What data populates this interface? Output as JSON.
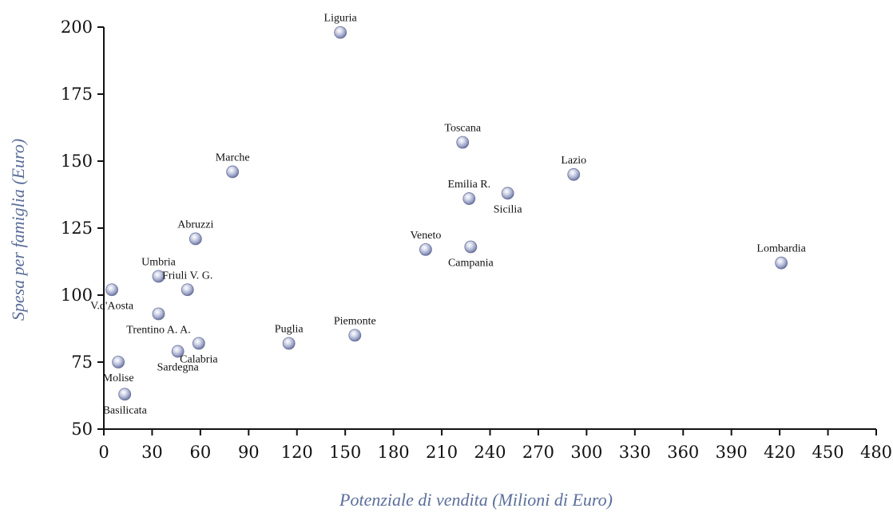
{
  "chart_data": {
    "type": "scatter",
    "xlabel": "Potenziale di vendita (Milioni di Euro)",
    "ylabel": "Spesa per famiglia (Euro)",
    "xlim": [
      0,
      480
    ],
    "ylim": [
      50,
      200
    ],
    "x_ticks": [
      0,
      30,
      60,
      90,
      120,
      150,
      180,
      210,
      240,
      270,
      300,
      330,
      360,
      390,
      420,
      450,
      480
    ],
    "y_ticks": [
      50,
      75,
      100,
      125,
      150,
      175,
      200
    ],
    "grid": false,
    "marker_color": "#a9b0cf",
    "points": [
      {
        "label": "Liguria",
        "x": 147,
        "y": 198,
        "label_pos": "above"
      },
      {
        "label": "Toscana",
        "x": 223,
        "y": 157,
        "label_pos": "above"
      },
      {
        "label": "Marche",
        "x": 80,
        "y": 146,
        "label_pos": "above"
      },
      {
        "label": "Lazio",
        "x": 292,
        "y": 145,
        "label_pos": "above"
      },
      {
        "label": "Sicilia",
        "x": 251,
        "y": 138,
        "label_pos": "below"
      },
      {
        "label": "Emilia R.",
        "x": 227,
        "y": 136,
        "label_pos": "above"
      },
      {
        "label": "Abruzzi",
        "x": 57,
        "y": 121,
        "label_pos": "above"
      },
      {
        "label": "Campania",
        "x": 228,
        "y": 118,
        "label_pos": "below"
      },
      {
        "label": "Veneto",
        "x": 200,
        "y": 117,
        "label_pos": "above"
      },
      {
        "label": "Lombardia",
        "x": 421,
        "y": 112,
        "label_pos": "above"
      },
      {
        "label": "Umbria",
        "x": 34,
        "y": 107,
        "label_pos": "above"
      },
      {
        "label": "Friuli V. G.",
        "x": 52,
        "y": 102,
        "label_pos": "above"
      },
      {
        "label": "V.d'Aosta",
        "x": 5,
        "y": 102,
        "label_pos": "below"
      },
      {
        "label": "Trentino A. A.",
        "x": 34,
        "y": 93,
        "label_pos": "below"
      },
      {
        "label": "Piemonte",
        "x": 156,
        "y": 85,
        "label_pos": "above"
      },
      {
        "label": "Puglia",
        "x": 115,
        "y": 82,
        "label_pos": "above"
      },
      {
        "label": "Calabria",
        "x": 59,
        "y": 82,
        "label_pos": "below"
      },
      {
        "label": "Sardegna",
        "x": 46,
        "y": 79,
        "label_pos": "below"
      },
      {
        "label": "Molise",
        "x": 9,
        "y": 75,
        "label_pos": "below"
      },
      {
        "label": "Basilicata",
        "x": 13,
        "y": 63,
        "label_pos": "below"
      }
    ]
  }
}
